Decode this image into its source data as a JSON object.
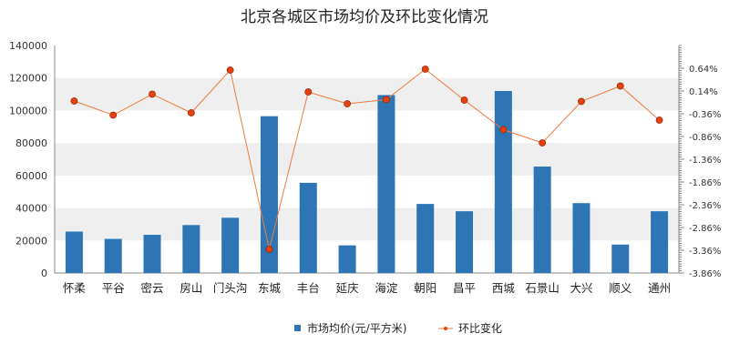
{
  "chart_data": {
    "type": "bar",
    "title": "北京各城区市场均价及环比变化情况",
    "categories": [
      "怀柔",
      "平谷",
      "密云",
      "房山",
      "门头沟",
      "东城",
      "丰台",
      "延庆",
      "海淀",
      "朝阳",
      "昌平",
      "西城",
      "石景山",
      "大兴",
      "顺义",
      "通州"
    ],
    "series": [
      {
        "name": "市场均价(元/平方米)",
        "type": "bar",
        "axis": "left",
        "color": "#2e75b6",
        "values": [
          25500,
          21000,
          23500,
          29500,
          34000,
          96500,
          55500,
          17000,
          109500,
          42500,
          38000,
          112000,
          65500,
          43000,
          17500,
          38000
        ]
      },
      {
        "name": "环比变化",
        "type": "line",
        "axis": "right",
        "color": "#f07b3f",
        "marker_color": "#e8400d",
        "values": [
          -0.08,
          -0.39,
          0.07,
          -0.34,
          0.6,
          -3.34,
          0.12,
          -0.14,
          -0.05,
          0.62,
          -0.06,
          -0.71,
          -1.0,
          -0.09,
          0.25,
          -0.5
        ]
      }
    ],
    "y_left": {
      "ylim": [
        0,
        140000
      ],
      "ticks": [
        "0",
        "20000",
        "40000",
        "60000",
        "80000",
        "100000",
        "120000",
        "140000"
      ]
    },
    "y_right": {
      "ylim": [
        -3.86,
        1.14
      ],
      "ticks": [
        "-3.86%",
        "-3.36%",
        "-2.86%",
        "-2.36%",
        "-1.86%",
        "-1.36%",
        "-0.86%",
        "-0.36%",
        "0.14%",
        "0.64%"
      ]
    },
    "grid": "alternating-bands",
    "legend_position": "bottom"
  }
}
